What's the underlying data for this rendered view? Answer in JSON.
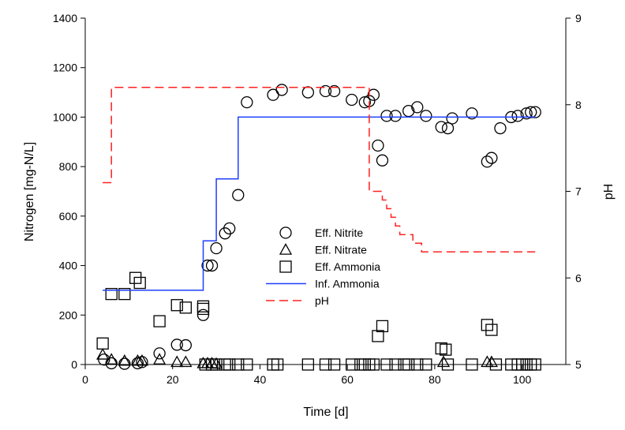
{
  "chart_data": {
    "type": "scatter",
    "xlabel": "Time [d]",
    "ylabel": "Nitrogen [mg-N/L]",
    "y2label": "pH",
    "xlim": [
      0,
      110
    ],
    "ylim": [
      0,
      1400
    ],
    "y2lim": [
      5,
      9
    ],
    "xticks": [
      0,
      20,
      40,
      60,
      80,
      100
    ],
    "yticks": [
      0,
      200,
      400,
      600,
      800,
      1000,
      1200,
      1400
    ],
    "y2ticks": [
      5,
      6,
      7,
      8,
      9
    ],
    "grid": false,
    "legend_position": "center",
    "series": [
      {
        "name": "Eff. Nitrite",
        "marker": "circle",
        "axis": "left",
        "color": "#000000",
        "points": [
          [
            4.3,
            20
          ],
          [
            6,
            5
          ],
          [
            9,
            3
          ],
          [
            12,
            5
          ],
          [
            13,
            10
          ],
          [
            17,
            45
          ],
          [
            21,
            80
          ],
          [
            23,
            78
          ],
          [
            27,
            200
          ],
          [
            28,
            400
          ],
          [
            29,
            400
          ],
          [
            30,
            470
          ],
          [
            32,
            530
          ],
          [
            33,
            550
          ],
          [
            35,
            685
          ],
          [
            37,
            1060
          ],
          [
            43,
            1090
          ],
          [
            45,
            1110
          ],
          [
            51,
            1100
          ],
          [
            55,
            1105
          ],
          [
            57,
            1105
          ],
          [
            61,
            1070
          ],
          [
            64,
            1060
          ],
          [
            65,
            1065
          ],
          [
            66,
            1090
          ],
          [
            67,
            885
          ],
          [
            68,
            825
          ],
          [
            69,
            1005
          ],
          [
            71,
            1005
          ],
          [
            74,
            1025
          ],
          [
            76,
            1040
          ],
          [
            78,
            1005
          ],
          [
            81.5,
            960
          ],
          [
            83,
            955
          ],
          [
            84,
            995
          ],
          [
            88.5,
            1015
          ],
          [
            92,
            820
          ],
          [
            93,
            835
          ],
          [
            95,
            955
          ],
          [
            97.5,
            1000
          ],
          [
            99,
            1005
          ],
          [
            101,
            1015
          ],
          [
            102,
            1020
          ],
          [
            103,
            1020
          ]
        ]
      },
      {
        "name": "Eff. Nitrate",
        "marker": "triangle",
        "axis": "left",
        "color": "#000000",
        "points": [
          [
            4,
            40
          ],
          [
            6,
            20
          ],
          [
            9,
            15
          ],
          [
            12,
            15
          ],
          [
            13,
            15
          ],
          [
            17,
            20
          ],
          [
            21,
            10
          ],
          [
            23,
            10
          ],
          [
            27,
            5
          ],
          [
            28,
            5
          ],
          [
            29,
            5
          ],
          [
            30,
            3
          ],
          [
            82,
            10
          ],
          [
            92,
            10
          ],
          [
            93,
            10
          ]
        ]
      },
      {
        "name": "Eff. Ammonia",
        "marker": "square",
        "axis": "left",
        "color": "#000000",
        "points": [
          [
            4,
            85
          ],
          [
            6,
            285
          ],
          [
            9,
            285
          ],
          [
            11.5,
            350
          ],
          [
            12.5,
            330
          ],
          [
            17,
            175
          ],
          [
            21,
            240
          ],
          [
            23,
            230
          ],
          [
            27,
            235
          ],
          [
            27,
            225
          ],
          [
            27.5,
            0
          ],
          [
            29,
            0
          ],
          [
            30,
            0
          ],
          [
            32,
            0
          ],
          [
            33,
            0
          ],
          [
            35,
            0
          ],
          [
            37,
            0
          ],
          [
            43,
            0
          ],
          [
            44,
            0
          ],
          [
            51,
            0
          ],
          [
            55,
            0
          ],
          [
            57,
            0
          ],
          [
            61,
            0
          ],
          [
            63,
            0
          ],
          [
            64,
            0
          ],
          [
            65,
            0
          ],
          [
            66,
            0
          ],
          [
            67,
            115
          ],
          [
            68,
            155
          ],
          [
            69,
            0
          ],
          [
            71,
            0
          ],
          [
            73,
            0
          ],
          [
            74,
            0
          ],
          [
            76,
            0
          ],
          [
            78,
            0
          ],
          [
            81.5,
            65
          ],
          [
            82.5,
            60
          ],
          [
            83,
            0
          ],
          [
            88.5,
            0
          ],
          [
            92,
            160
          ],
          [
            93,
            140
          ],
          [
            94,
            0
          ],
          [
            97.5,
            0
          ],
          [
            99,
            0
          ],
          [
            100,
            0
          ],
          [
            101,
            0
          ],
          [
            102,
            0
          ],
          [
            103,
            0
          ]
        ]
      },
      {
        "name": "Inf. Ammonia",
        "style": "solid-step",
        "axis": "left",
        "color": "#1f3fff",
        "points": [
          [
            4,
            300
          ],
          [
            27,
            300
          ],
          [
            27,
            500
          ],
          [
            30,
            500
          ],
          [
            30,
            750
          ],
          [
            35,
            750
          ],
          [
            35,
            1000
          ],
          [
            103,
            1000
          ]
        ]
      },
      {
        "name": "pH",
        "style": "dashed-step",
        "axis": "right",
        "color": "#ff2020",
        "points": [
          [
            4,
            7.1
          ],
          [
            6,
            7.1
          ],
          [
            6,
            8.2
          ],
          [
            65,
            8.2
          ],
          [
            65,
            7.0
          ],
          [
            68,
            7.0
          ],
          [
            68,
            6.9
          ],
          [
            69,
            6.9
          ],
          [
            69,
            6.8
          ],
          [
            70,
            6.8
          ],
          [
            70,
            6.7
          ],
          [
            71,
            6.7
          ],
          [
            71,
            6.6
          ],
          [
            72,
            6.6
          ],
          [
            72,
            6.5
          ],
          [
            75,
            6.5
          ],
          [
            75,
            6.4
          ],
          [
            77,
            6.4
          ],
          [
            77,
            6.3
          ],
          [
            103,
            6.3
          ]
        ]
      }
    ]
  }
}
